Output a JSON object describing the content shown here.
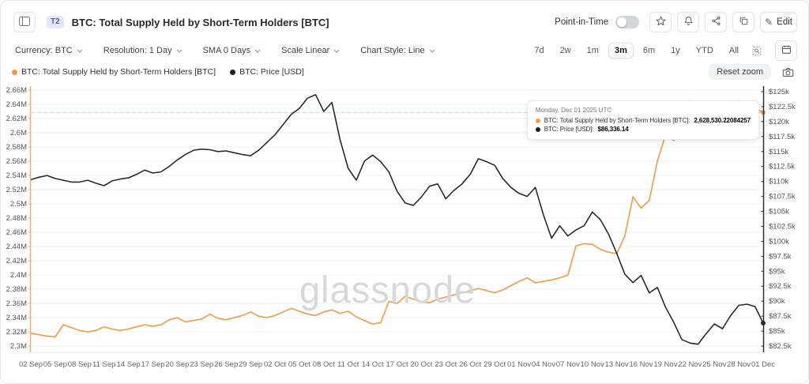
{
  "header": {
    "badge": "T2",
    "title": "BTC: Total Supply Held by Short-Term Holders [BTC]",
    "point_in_time_label": "Point-in-Time",
    "point_in_time_state": "off",
    "edit_label": "Edit"
  },
  "controls": [
    {
      "label": "Currency: BTC"
    },
    {
      "label": "Resolution: 1 Day"
    },
    {
      "label": "SMA 0 Days"
    },
    {
      "label": "Scale Linear"
    },
    {
      "label": "Chart Style: Line"
    }
  ],
  "toolbar": {
    "ranges": [
      "7d",
      "2w",
      "1m",
      "3m",
      "6m",
      "1y",
      "YTD",
      "All"
    ],
    "selected_range": "3m",
    "reset_zoom_label": "Reset zoom"
  },
  "legend": [
    {
      "label": "BTC: Total Supply Held by Short-Term Holders [BTC]",
      "color": "#f2994a"
    },
    {
      "label": "BTC: Price [USD]",
      "color": "#1f1f1f"
    }
  ],
  "tooltip": {
    "date": "Monday, Dec 01 2025 UTC",
    "rows": [
      {
        "label": "BTC: Total Supply Held by Short-Term Holders [BTC]:",
        "value": "2,628,530.22084257",
        "color": "#f2994a"
      },
      {
        "label": "BTC: Price [USD]:",
        "value": "$86,336.14",
        "color": "#1f1f1f"
      }
    ]
  },
  "watermark": "glassnode",
  "chart_data": {
    "type": "line",
    "title": "BTC: Total Supply Held by Short-Term Holders [BTC] vs BTC Price [USD]",
    "frequency": "daily",
    "x_start": "2025-09-02",
    "x_end": "2025-12-01",
    "x_tick_labels": [
      "02 Sep",
      "05 Sep",
      "08 Sep",
      "11 Sep",
      "14 Sep",
      "17 Sep",
      "20 Sep",
      "23 Sep",
      "26 Sep",
      "29 Sep",
      "02 Oct",
      "05 Oct",
      "08 Oct",
      "11 Oct",
      "14 Oct",
      "17 Oct",
      "20 Oct",
      "23 Oct",
      "26 Oct",
      "29 Oct",
      "01 Nov",
      "04 Nov",
      "07 Nov",
      "10 Nov",
      "13 Nov",
      "16 Nov",
      "19 Nov",
      "22 Nov",
      "25 Nov",
      "28 Nov",
      "01 Dec"
    ],
    "left_axis": {
      "unit": "M BTC",
      "min": 2.3,
      "max": 2.66,
      "ticks": [
        "2.66M",
        "2.64M",
        "2.62M",
        "2.6M",
        "2.58M",
        "2.56M",
        "2.54M",
        "2.52M",
        "2.5M",
        "2.48M",
        "2.46M",
        "2.44M",
        "2.42M",
        "2.4M",
        "2.38M",
        "2.36M",
        "2.34M",
        "2.32M",
        "2.3M"
      ],
      "axis_color": "#e8b27d"
    },
    "right_axis": {
      "unit": "USD (thousands)",
      "min": 82.5,
      "max": 125,
      "ticks": [
        "$125k",
        "$122.5k",
        "$120k",
        "$117.5k",
        "$115k",
        "$112.5k",
        "$110k",
        "$107.5k",
        "$105k",
        "$102.5k",
        "$100k",
        "$97.5k",
        "$95k",
        "$92.5k",
        "$90k",
        "$87.5k",
        "$85k",
        "$82.5k"
      ],
      "axis_color": "#2f2f2f"
    },
    "last_value_line": {
      "value": 2.6285,
      "color": "#c3d6d4"
    },
    "series": [
      {
        "name": "BTC: Total Supply Held by Short-Term Holders [BTC]",
        "axis": "left",
        "color": "#f2994a",
        "unit": "M BTC",
        "values": [
          2.318,
          2.316,
          2.314,
          2.313,
          2.33,
          2.326,
          2.322,
          2.32,
          2.322,
          2.327,
          2.324,
          2.322,
          2.324,
          2.327,
          2.33,
          2.328,
          2.33,
          2.337,
          2.34,
          2.334,
          2.336,
          2.338,
          2.345,
          2.339,
          2.337,
          2.34,
          2.343,
          2.348,
          2.342,
          2.34,
          2.343,
          2.348,
          2.353,
          2.349,
          2.345,
          2.343,
          2.348,
          2.351,
          2.346,
          2.349,
          2.341,
          2.336,
          2.331,
          2.333,
          2.363,
          2.36,
          2.37,
          2.366,
          2.362,
          2.361,
          2.366,
          2.369,
          2.372,
          2.375,
          2.378,
          2.381,
          2.378,
          2.375,
          2.379,
          2.385,
          2.391,
          2.396,
          2.389,
          2.391,
          2.393,
          2.396,
          2.4,
          2.441,
          2.444,
          2.443,
          2.436,
          2.432,
          2.43,
          2.455,
          2.51,
          2.494,
          2.505,
          2.56,
          2.597,
          2.589,
          2.612,
          2.645,
          2.633,
          2.63,
          2.632,
          2.635,
          2.641,
          2.645,
          2.639,
          2.635,
          2.6285
        ]
      },
      {
        "name": "BTC: Price [USD]",
        "axis": "right",
        "color": "#2b2b2b",
        "unit": "USD k",
        "values": [
          110.3,
          110.7,
          111.0,
          110.5,
          110.2,
          109.9,
          109.9,
          110.2,
          109.7,
          109.3,
          110.1,
          110.4,
          110.6,
          111.2,
          111.9,
          111.4,
          111.6,
          112.5,
          113.6,
          114.5,
          115.2,
          115.4,
          115.3,
          115.0,
          115.1,
          114.8,
          114.5,
          114.3,
          115.2,
          116.5,
          117.8,
          119.5,
          121.2,
          122.2,
          123.9,
          124.5,
          121.7,
          123.2,
          117.0,
          112.2,
          110.2,
          113.4,
          114.4,
          113.3,
          111.6,
          108.4,
          106.4,
          106.0,
          107.4,
          109.2,
          109.6,
          107.1,
          108.5,
          109.6,
          111.2,
          113.8,
          113.3,
          112.7,
          110.5,
          109.0,
          108.0,
          107.5,
          109.0,
          104.4,
          100.5,
          102.6,
          100.9,
          101.9,
          102.6,
          104.9,
          103.6,
          101.2,
          98.0,
          94.5,
          93.1,
          94.3,
          91.4,
          92.3,
          89.0,
          86.5,
          83.6,
          83.0,
          82.8,
          84.6,
          86.2,
          85.4,
          87.6,
          89.3,
          89.5,
          89.1,
          86.336
        ]
      }
    ],
    "grid": "horizontal",
    "legend_position": "top-left"
  }
}
